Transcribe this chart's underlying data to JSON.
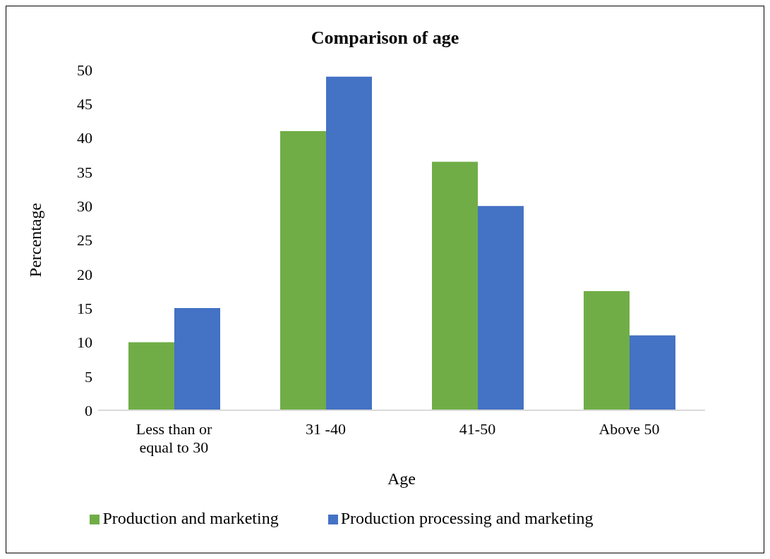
{
  "chart_data": {
    "type": "bar",
    "title": "Comparison of age",
    "xlabel": "Age",
    "ylabel": "Percentage",
    "categories": [
      "Less than or equal to 30",
      "31 -40",
      "41-50",
      "Above 50"
    ],
    "series": [
      {
        "name": "Production and marketing",
        "color": "#70ad47",
        "values": [
          10,
          41,
          36.5,
          17.5
        ]
      },
      {
        "name": "Production processing and marketing",
        "color": "#4472c4",
        "values": [
          15,
          49,
          30,
          11
        ]
      }
    ],
    "ylim": [
      0,
      50
    ],
    "yticks": [
      0,
      5,
      10,
      15,
      20,
      25,
      30,
      35,
      40,
      45,
      50
    ],
    "grid": false,
    "legend": "bottom"
  }
}
